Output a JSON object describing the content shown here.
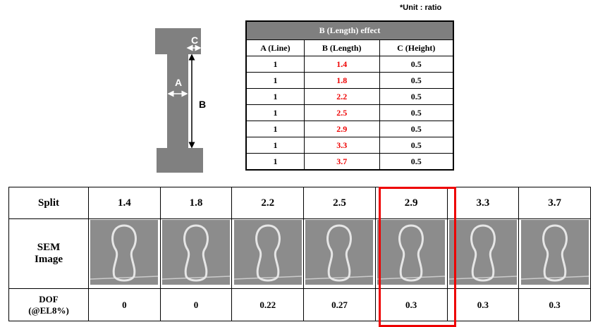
{
  "unit_note": "*Unit : ratio",
  "diagram": {
    "labels": [
      "C",
      "A",
      "B"
    ]
  },
  "spec_table": {
    "title": "B (Length) effect",
    "columns": [
      "A (Line)",
      "B (Length)",
      "C (Height)"
    ],
    "rows": [
      [
        1,
        1.4,
        0.5
      ],
      [
        1,
        1.8,
        0.5
      ],
      [
        1,
        2.2,
        0.5
      ],
      [
        1,
        2.5,
        0.5
      ],
      [
        1,
        2.9,
        0.5
      ],
      [
        1,
        3.3,
        0.5
      ],
      [
        1,
        3.7,
        0.5
      ]
    ]
  },
  "split_table": {
    "split": {
      "label": "Split",
      "values": [
        1.4,
        1.8,
        2.2,
        2.5,
        2.9,
        3.3,
        3.7
      ]
    },
    "sem": {
      "label": "SEM Image"
    },
    "dof": {
      "label": "DOF (@EL8%)",
      "values": [
        0,
        0,
        0.22,
        0.27,
        0.3,
        0.3,
        0.3
      ]
    }
  }
}
